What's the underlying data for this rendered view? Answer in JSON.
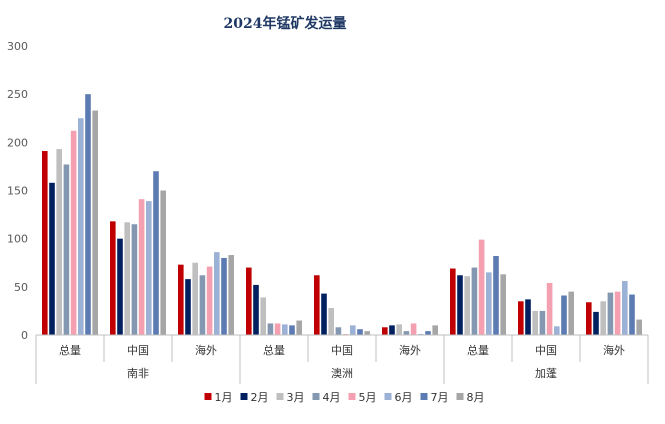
{
  "chart_data": {
    "type": "bar",
    "title": "2024年锰矿发运量",
    "xlabel": "",
    "ylabel": "",
    "ylim": [
      0,
      300
    ],
    "yticks": [
      0,
      50,
      100,
      150,
      200,
      250,
      300
    ],
    "grid": false,
    "legend_position": "bottom",
    "groups": [
      {
        "label": "南非",
        "categories": [
          "总量",
          "中国",
          "海外"
        ]
      },
      {
        "label": "澳洲",
        "categories": [
          "总量",
          "中国",
          "海外"
        ]
      },
      {
        "label": "加蓬",
        "categories": [
          "总量",
          "中国",
          "海外"
        ]
      }
    ],
    "categories": [
      "总量",
      "中国",
      "海外",
      "总量",
      "中国",
      "海外",
      "总量",
      "中国",
      "海外"
    ],
    "series": [
      {
        "name": "1月",
        "color": "#c00000",
        "values": [
          191,
          118,
          73,
          70,
          62,
          8,
          69,
          35,
          34
        ]
      },
      {
        "name": "2月",
        "color": "#002060",
        "values": [
          158,
          100,
          58,
          52,
          43,
          10,
          62,
          37,
          24
        ]
      },
      {
        "name": "3月",
        "color": "#bfbfbf",
        "values": [
          193,
          117,
          75,
          39,
          28,
          11,
          61,
          25,
          35
        ]
      },
      {
        "name": "4月",
        "color": "#8497b0",
        "values": [
          177,
          115,
          62,
          12,
          8,
          4,
          70,
          25,
          44
        ]
      },
      {
        "name": "5月",
        "color": "#f4a0b0",
        "values": [
          212,
          141,
          71,
          12,
          1,
          12,
          99,
          54,
          45
        ]
      },
      {
        "name": "6月",
        "color": "#9bb1d5",
        "values": [
          225,
          139,
          86,
          11,
          10,
          1,
          65,
          9,
          56
        ]
      },
      {
        "name": "7月",
        "color": "#5b7bb2",
        "values": [
          250,
          170,
          80,
          10,
          6,
          4,
          82,
          41,
          42
        ]
      },
      {
        "name": "8月",
        "color": "#a6a6a6",
        "values": [
          233,
          150,
          83,
          15,
          4,
          10,
          63,
          45,
          16
        ]
      }
    ]
  }
}
